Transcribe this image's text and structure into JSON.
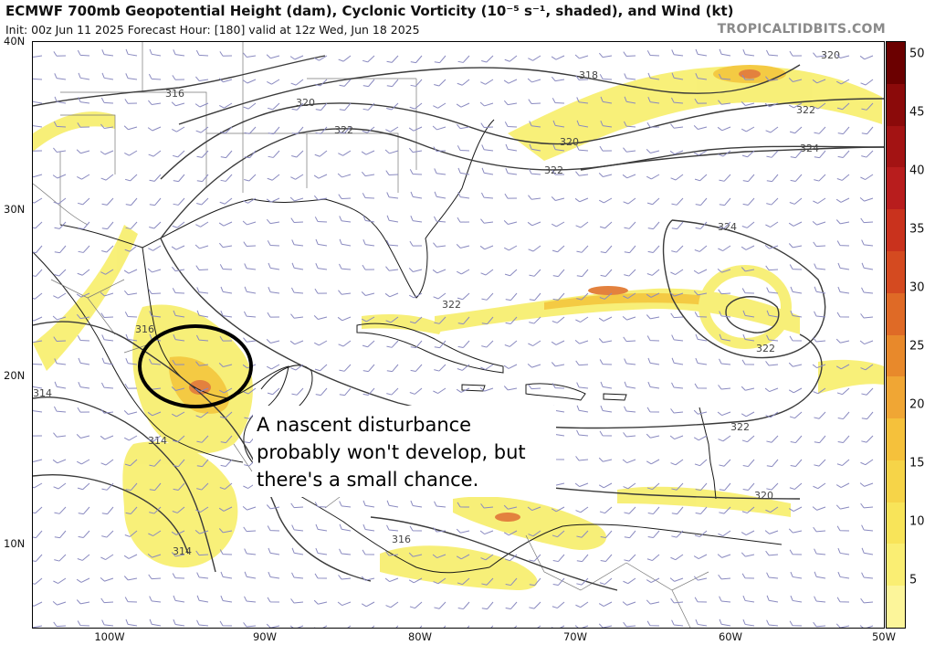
{
  "header": {
    "title": "ECMWF 700mb Geopotential Height (dam), Cyclonic Vorticity (10⁻⁵ s⁻¹, shaded), and Wind (kt)",
    "subtitle": "Init: 00z Jun 11 2025   Forecast Hour: [180]   valid at 12z Wed, Jun 18 2025",
    "credit": "TROPICALTIDBITS.COM"
  },
  "map": {
    "lat_labels": [
      "40N",
      "30N",
      "20N",
      "10N"
    ],
    "lon_labels": [
      "100W",
      "90W",
      "80W",
      "70W",
      "60W",
      "50W"
    ],
    "contour_labels": [
      "316",
      "318",
      "320",
      "322",
      "322",
      "320",
      "322",
      "324",
      "324",
      "322",
      "322",
      "322",
      "320",
      "316",
      "314",
      "314",
      "316",
      "314",
      "320"
    ],
    "colors": {
      "contour": "#3a3a3a",
      "coast": "#1a1a1a",
      "border": "#777777",
      "wind_barb": "#8a8ac0",
      "vort_low": "#f7ee6a",
      "vort_mid": "#f3c52f",
      "vort_high": "#e0742a",
      "circle": "#000000"
    }
  },
  "colorbar": {
    "labels": [
      "50",
      "45",
      "40",
      "35",
      "30",
      "25",
      "20",
      "15",
      "10",
      "5"
    ],
    "colors": [
      "#6b0000",
      "#8b0a0a",
      "#a31313",
      "#b81d1d",
      "#c9321d",
      "#d44a20",
      "#df6a26",
      "#e8892b",
      "#f0a634",
      "#f5c13b",
      "#f6d448",
      "#f8e459",
      "#faee73",
      "#fcf59a"
    ]
  },
  "annotation": {
    "lines": [
      "A nascent disturbance",
      "probably won't develop, but",
      "there's a small chance."
    ]
  }
}
